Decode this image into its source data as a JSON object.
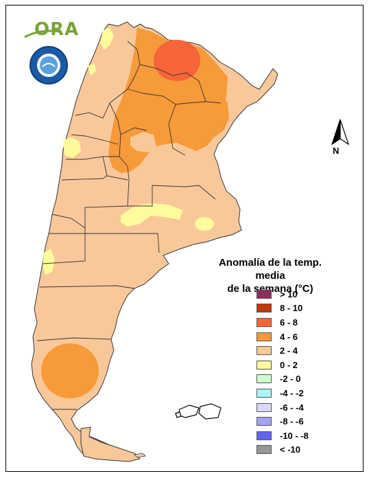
{
  "header": {
    "logo_text": "ORA",
    "seal_icon": "smn-argentina-seal-icon"
  },
  "north_arrow": {
    "label": "N",
    "icon": "north-arrow-icon"
  },
  "legend": {
    "title_line1": "Anomalía de la temp. media",
    "title_line2": "de la semana (°C)",
    "items": [
      {
        "label": "> 10",
        "color": "#8b2f5a"
      },
      {
        "label": "8 - 10",
        "color": "#c4360e"
      },
      {
        "label": "6 - 8",
        "color": "#f6643a"
      },
      {
        "label": "4 - 6",
        "color": "#f79a3a"
      },
      {
        "label": "2 - 4",
        "color": "#f9c89a"
      },
      {
        "label": "0 - 2",
        "color": "#fdfb9c"
      },
      {
        "label": "-2 - 0",
        "color": "#cdfccf"
      },
      {
        "label": "-4 - -2",
        "color": "#a8f5f8"
      },
      {
        "label": "-6 - -4",
        "color": "#d8d8fd"
      },
      {
        "label": "-8 - -6",
        "color": "#a3a2f4"
      },
      {
        "label": "-10 - -8",
        "color": "#6365f1"
      },
      {
        "label": "< -10",
        "color": "#979797"
      }
    ]
  }
}
